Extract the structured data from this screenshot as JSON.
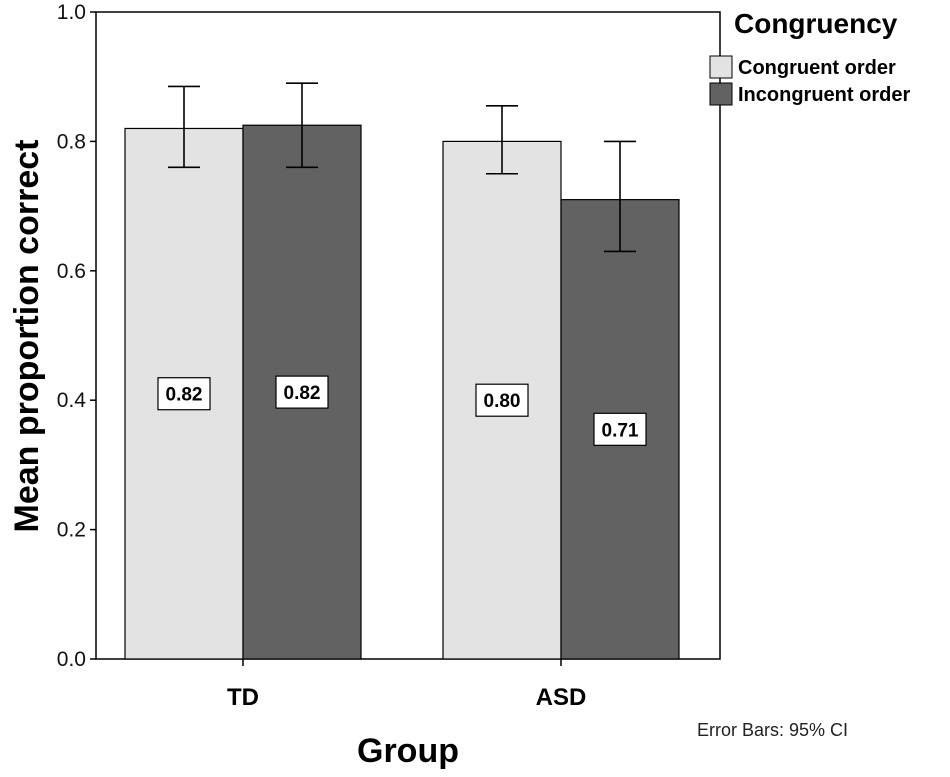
{
  "chart_data": {
    "type": "bar",
    "title": "",
    "xlabel": "Group",
    "ylabel": "Mean proportion correct",
    "categories": [
      "TD",
      "ASD"
    ],
    "ylim": [
      0.0,
      1.0
    ],
    "yticks": [
      "0.0",
      "0.2",
      "0.4",
      "0.6",
      "0.8",
      "1.0"
    ],
    "legend_title": "Congruency",
    "legend_position": "top-right",
    "series": [
      {
        "name": "Congruent order",
        "color": "#e3e3e3",
        "values": [
          0.82,
          0.8
        ],
        "labels": [
          "0.82",
          "0.80"
        ],
        "ci_low": [
          0.76,
          0.75
        ],
        "ci_high": [
          0.885,
          0.855
        ]
      },
      {
        "name": "Incongruent order",
        "color": "#626262",
        "values": [
          0.825,
          0.71
        ],
        "labels": [
          "0.82",
          "0.71"
        ],
        "ci_low": [
          0.76,
          0.63
        ],
        "ci_high": [
          0.89,
          0.8
        ]
      }
    ],
    "footnote": "Error Bars: 95% CI"
  }
}
